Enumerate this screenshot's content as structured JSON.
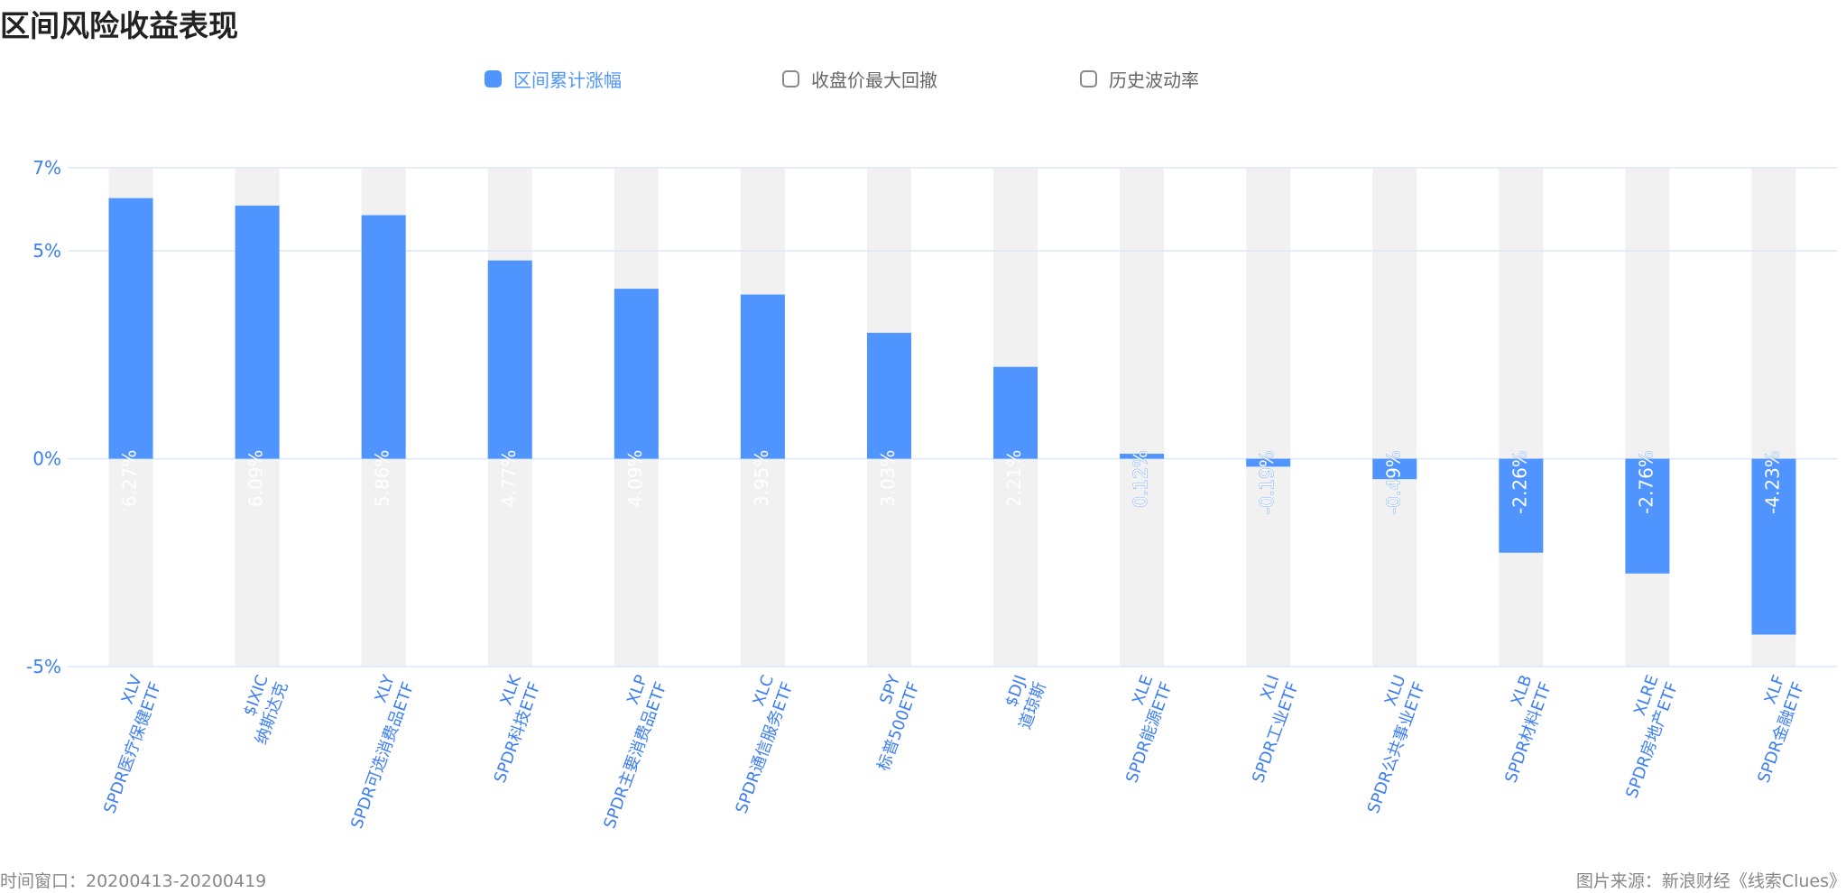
{
  "title": "区间风险收益表现",
  "legend": {
    "items": [
      {
        "label": "区间累计涨幅",
        "active": true
      },
      {
        "label": "收盘价最大回撤",
        "active": false
      },
      {
        "label": "历史波动率",
        "active": false
      }
    ]
  },
  "colors": {
    "bar": "#4f94ff",
    "bar_bg": "#f1f1f1",
    "axis_text": "#3d7ef5",
    "grid": "#dbe8f8"
  },
  "chart_data": {
    "type": "bar",
    "categories": [
      {
        "code": "XLV",
        "name": "SPDR医疗保健ETF"
      },
      {
        "code": "$IXIC",
        "name": "纳斯达克"
      },
      {
        "code": "XLY",
        "name": "SPDR可选消费品ETF"
      },
      {
        "code": "XLK",
        "name": "SPDR科技ETF"
      },
      {
        "code": "XLP",
        "name": "SPDR主要消费品ETF"
      },
      {
        "code": "XLC",
        "name": "SPDR通信服务ETF"
      },
      {
        "code": "SPY",
        "name": "标普500ETF"
      },
      {
        "code": "$DJI",
        "name": "道琼斯"
      },
      {
        "code": "XLE",
        "name": "SPDR能源ETF"
      },
      {
        "code": "XLI",
        "name": "SPDR工业ETF"
      },
      {
        "code": "XLU",
        "name": "SPDR公共事业ETF"
      },
      {
        "code": "XLB",
        "name": "SPDR材料ETF"
      },
      {
        "code": "XLRE",
        "name": "SPDR房地产ETF"
      },
      {
        "code": "XLF",
        "name": "SPDR金融ETF"
      }
    ],
    "values": [
      6.27,
      6.09,
      5.86,
      4.77,
      4.09,
      3.95,
      3.03,
      2.21,
      0.12,
      -0.19,
      -0.49,
      -2.26,
      -2.76,
      -4.23
    ],
    "data_labels": [
      "6.27%",
      "6.09%",
      "5.86%",
      "4.77%",
      "4.09%",
      "3.95%",
      "3.03%",
      "2.21%",
      "0.12%",
      "-0.19%",
      "-0.49%",
      "-2.26%",
      "-2.76%",
      "-4.23%"
    ],
    "yticks": [
      {
        "value": 7,
        "label": "7%"
      },
      {
        "value": 5,
        "label": "5%"
      },
      {
        "value": 0,
        "label": "0%"
      },
      {
        "value": -5,
        "label": "-5%"
      }
    ],
    "ylim": [
      -5,
      7
    ],
    "grid": true,
    "legend_position": "top-center"
  },
  "footer": {
    "left": "时间窗口：20200413-20200419",
    "right": "图片来源：新浪财经《线索Clues》"
  }
}
